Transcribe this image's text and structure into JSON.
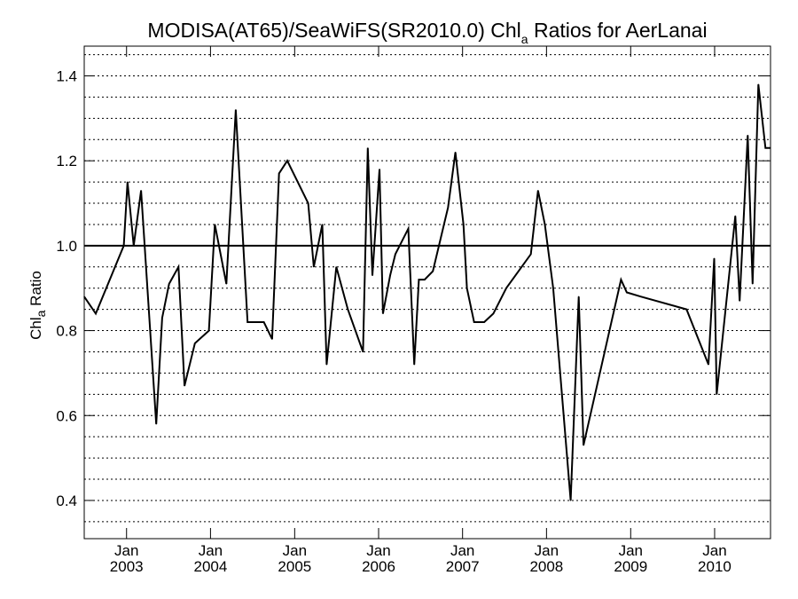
{
  "chart_data": {
    "type": "line",
    "title": "MODISA(AT65)/SeaWiFS(SR2010.0)  Chl",
    "title_subscript": "a",
    "title_suffix": " Ratios for AerLanai",
    "ylabel": "Chl",
    "ylabel_subscript": "a",
    "ylabel_suffix": " Ratio",
    "xlabel": "",
    "xlim": [
      "2002-07-01",
      "2010-09-01"
    ],
    "ylim": [
      0.31,
      1.47
    ],
    "y_ticks": [
      0.4,
      0.6,
      0.8,
      1.0,
      1.2,
      1.4
    ],
    "y_tick_labels": [
      "0.4",
      "0.6",
      "0.8",
      "1.0",
      "1.2",
      "1.4"
    ],
    "y_gridlines": [
      0.35,
      0.4,
      0.45,
      0.5,
      0.55,
      0.6,
      0.65,
      0.7,
      0.75,
      0.8,
      0.85,
      0.9,
      0.95,
      1.05,
      1.1,
      1.15,
      1.2,
      1.25,
      1.3,
      1.35,
      1.4,
      1.45
    ],
    "grid": "horizontal dotted",
    "reference_line": 1.0,
    "x_ticks": [
      {
        "date": "2003-01-01",
        "month": "Jan",
        "year": "2003"
      },
      {
        "date": "2004-01-01",
        "month": "Jan",
        "year": "2004"
      },
      {
        "date": "2005-01-01",
        "month": "Jan",
        "year": "2005"
      },
      {
        "date": "2006-01-01",
        "month": "Jan",
        "year": "2006"
      },
      {
        "date": "2007-01-01",
        "month": "Jan",
        "year": "2007"
      },
      {
        "date": "2008-01-01",
        "month": "Jan",
        "year": "2008"
      },
      {
        "date": "2009-01-01",
        "month": "Jan",
        "year": "2009"
      },
      {
        "date": "2010-01-01",
        "month": "Jan",
        "year": "2010"
      }
    ],
    "series": [
      {
        "color": "#000000",
        "x": [
          "2002-07-01",
          "2002-08-20",
          "2002-12-20",
          "2003-01-05",
          "2003-02-01",
          "2003-03-05",
          "2003-05-10",
          "2003-06-05",
          "2003-07-05",
          "2003-08-15",
          "2003-09-10",
          "2003-10-25",
          "2003-12-25",
          "2004-01-20",
          "2004-03-10",
          "2004-04-20",
          "2004-06-10",
          "2004-07-15",
          "2004-08-20",
          "2004-09-25",
          "2004-10-25",
          "2004-11-30",
          "2005-03-01",
          "2005-03-25",
          "2005-05-01",
          "2005-05-20",
          "2005-07-01",
          "2005-08-20",
          "2005-10-25",
          "2005-11-15",
          "2005-12-05",
          "2006-01-05",
          "2006-01-20",
          "2006-02-20",
          "2006-03-15",
          "2006-05-10",
          "2006-06-05",
          "2006-06-25",
          "2006-07-20",
          "2006-08-25",
          "2006-10-30",
          "2006-12-01",
          "2007-01-05",
          "2007-01-20",
          "2007-02-20",
          "2007-04-05",
          "2007-05-15",
          "2007-07-10",
          "2007-10-25",
          "2007-11-25",
          "2007-12-25",
          "2008-01-30",
          "2008-04-15",
          "2008-05-20",
          "2008-06-10",
          "2008-11-20",
          "2008-12-15",
          "2009-02-15",
          "2009-09-01",
          "2009-12-05",
          "2009-12-30",
          "2010-01-10",
          "2010-04-01",
          "2010-04-20",
          "2010-05-25",
          "2010-06-15",
          "2010-07-10",
          "2010-08-10",
          "2010-09-01"
        ],
        "y": [
          0.88,
          0.84,
          1.0,
          1.15,
          1.0,
          1.13,
          0.58,
          0.83,
          0.91,
          0.95,
          0.67,
          0.77,
          0.8,
          1.05,
          0.91,
          1.32,
          0.82,
          0.82,
          0.82,
          0.78,
          1.17,
          1.2,
          1.1,
          0.95,
          1.05,
          0.72,
          0.95,
          0.85,
          0.75,
          1.23,
          0.93,
          1.18,
          0.84,
          0.93,
          0.98,
          1.04,
          0.72,
          0.92,
          0.92,
          0.94,
          1.09,
          1.22,
          1.05,
          0.9,
          0.82,
          0.82,
          0.84,
          0.9,
          0.98,
          1.13,
          1.05,
          0.9,
          0.4,
          0.88,
          0.53,
          0.92,
          0.89,
          0.88,
          0.85,
          0.72,
          0.97,
          0.65,
          1.07,
          0.87,
          1.26,
          0.91,
          1.38,
          1.23,
          1.23
        ]
      }
    ]
  }
}
